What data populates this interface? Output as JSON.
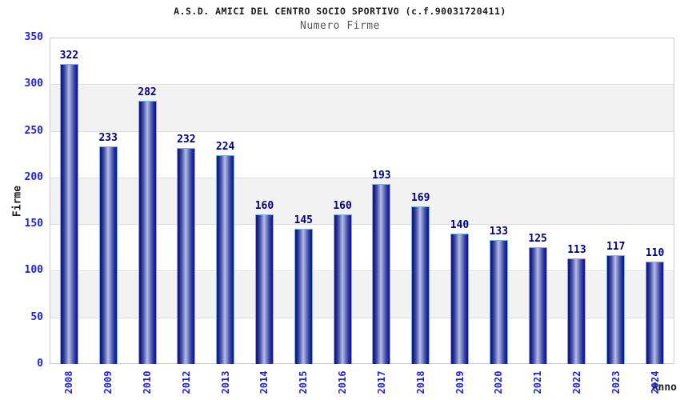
{
  "header": {
    "title": "A.S.D. AMICI DEL CENTRO SOCIO SPORTIVO (c.f.90031720411)",
    "subtitle": "Numero Firme"
  },
  "chart_data": {
    "type": "bar",
    "title": "A.S.D. AMICI DEL CENTRO SOCIO SPORTIVO (c.f.90031720411)",
    "subtitle": "Numero Firme",
    "categories": [
      "2008",
      "2009",
      "2010",
      "2012",
      "2013",
      "2014",
      "2015",
      "2016",
      "2017",
      "2018",
      "2019",
      "2020",
      "2021",
      "2022",
      "2023",
      "2024"
    ],
    "values": [
      322,
      233,
      282,
      232,
      224,
      160,
      145,
      160,
      193,
      169,
      140,
      133,
      125,
      113,
      117,
      110
    ],
    "xlabel": "Anno",
    "ylabel": "Firme",
    "ylim": [
      0,
      350
    ],
    "yticks": [
      0,
      50,
      100,
      150,
      200,
      250,
      300,
      350
    ],
    "grid": "horizontal",
    "legend": "none",
    "bar_labels_shown": true
  },
  "colors": {
    "tick_label_blue": "#2323cc",
    "bar_value_navy": "#00007d",
    "bar_dark_edge": "#10187a",
    "bar_light_center": "#b7bde5",
    "bar_border_light_blue": "#7cb0e4",
    "band_gray": "#f2f2f2",
    "gridline": "#dddddd",
    "plot_border": "#cccccc",
    "title_color": "#1a1a1a",
    "subtitle_color": "#565656",
    "axis_title_color": "#222222",
    "background": "#ffffff"
  }
}
